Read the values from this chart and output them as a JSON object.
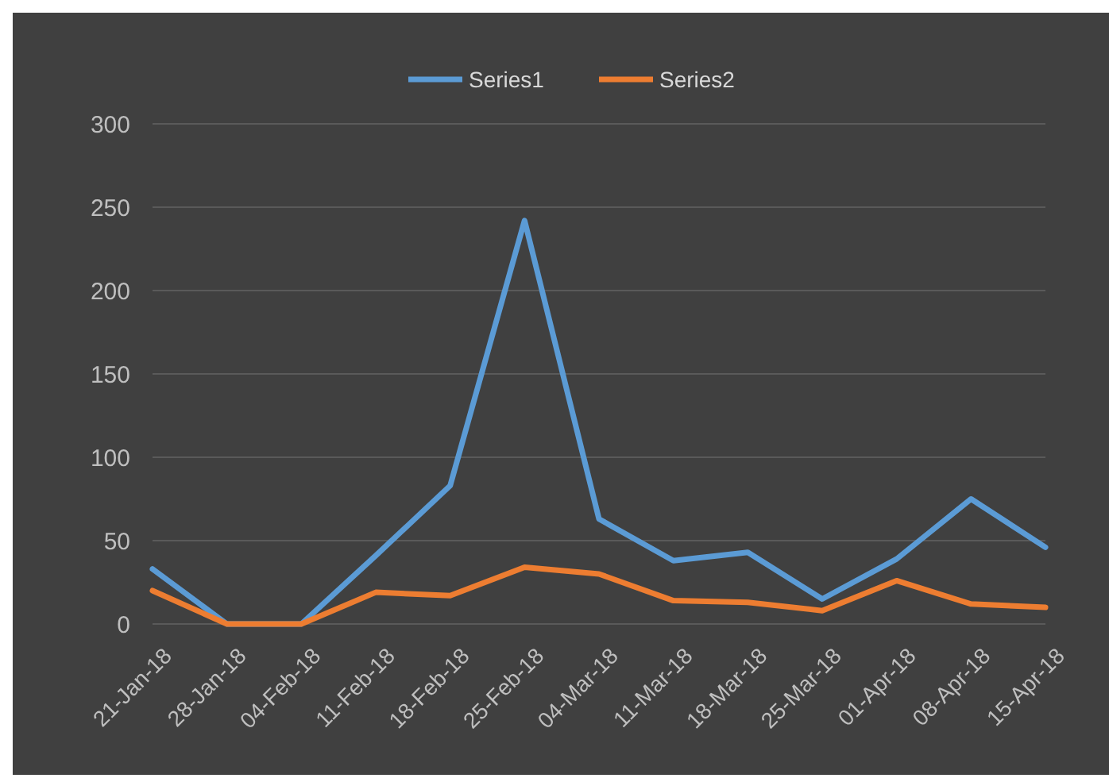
{
  "chart_data": {
    "type": "line",
    "categories": [
      "21-Jan-18",
      "28-Jan-18",
      "04-Feb-18",
      "11-Feb-18",
      "18-Feb-18",
      "25-Feb-18",
      "04-Mar-18",
      "11-Mar-18",
      "18-Mar-18",
      "25-Mar-18",
      "01-Apr-18",
      "08-Apr-18",
      "15-Apr-18"
    ],
    "series": [
      {
        "name": "Series1",
        "color": "#5b9bd5",
        "values": [
          33,
          0,
          0,
          41,
          83,
          242,
          63,
          38,
          43,
          15,
          39,
          75,
          46
        ]
      },
      {
        "name": "Series2",
        "color": "#ed7d31",
        "values": [
          20,
          0,
          0,
          19,
          17,
          34,
          30,
          14,
          13,
          8,
          26,
          12,
          10
        ]
      }
    ],
    "ylim": [
      0,
      300
    ],
    "yticks": [
      0,
      50,
      100,
      150,
      200,
      250,
      300
    ],
    "grid": "y",
    "legend": "top",
    "marker": "none",
    "line_style": "solid"
  }
}
